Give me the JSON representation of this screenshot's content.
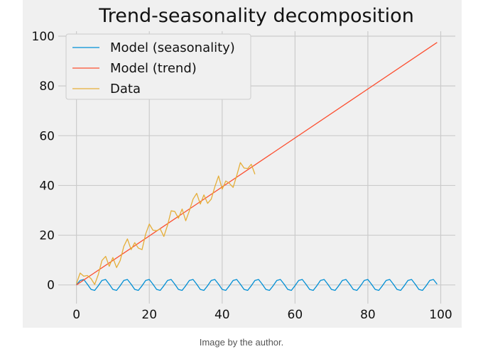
{
  "chart_data": {
    "type": "line",
    "title": "Trend-seasonality decomposition",
    "xlabel": "",
    "ylabel": "",
    "xlim": [
      -5,
      104
    ],
    "ylim": [
      -7.5,
      102
    ],
    "xticks": [
      0,
      20,
      40,
      60,
      80,
      100
    ],
    "yticks": [
      0,
      20,
      40,
      60,
      80,
      100
    ],
    "grid": true,
    "legend_position": "top-left",
    "series": [
      {
        "name": "Model (seasonality)",
        "color": "#008fd5",
        "x": [
          0,
          1,
          2,
          3,
          4,
          5,
          6,
          7,
          8,
          9,
          10,
          11,
          12,
          13,
          14,
          15,
          16,
          17,
          18,
          19,
          20,
          21,
          22,
          23,
          24,
          25,
          26,
          27,
          28,
          29,
          30,
          31,
          32,
          33,
          34,
          35,
          36,
          37,
          38,
          39,
          40,
          41,
          42,
          43,
          44,
          45,
          46,
          47,
          48,
          49,
          50,
          51,
          52,
          53,
          54,
          55,
          56,
          57,
          58,
          59,
          60,
          61,
          62,
          63,
          64,
          65,
          66,
          67,
          68,
          69,
          70,
          71,
          72,
          73,
          74,
          75,
          76,
          77,
          78,
          79,
          80,
          81,
          82,
          83,
          84,
          85,
          86,
          87,
          88,
          89,
          90,
          91,
          92,
          93,
          94,
          95,
          96,
          97,
          98,
          99
        ],
        "y": [
          0,
          1.8,
          2.2,
          0.3,
          -1.8,
          -2.2,
          -0.3,
          1.8,
          2.2,
          0.3,
          -1.8,
          -2.2,
          -0.3,
          1.8,
          2.2,
          0.3,
          -1.8,
          -2.2,
          -0.3,
          1.8,
          2.2,
          0.3,
          -1.8,
          -2.2,
          -0.3,
          1.8,
          2.2,
          0.3,
          -1.8,
          -2.2,
          -0.3,
          1.8,
          2.2,
          0.3,
          -1.8,
          -2.2,
          -0.3,
          1.8,
          2.2,
          0.3,
          -1.8,
          -2.2,
          -0.3,
          1.8,
          2.2,
          0.3,
          -1.8,
          -2.2,
          -0.3,
          1.8,
          2.2,
          0.3,
          -1.8,
          -2.2,
          -0.3,
          1.8,
          2.2,
          0.3,
          -1.8,
          -2.2,
          -0.3,
          1.8,
          2.2,
          0.3,
          -1.8,
          -2.2,
          -0.3,
          1.8,
          2.2,
          0.3,
          -1.8,
          -2.2,
          -0.3,
          1.8,
          2.2,
          0.3,
          -1.8,
          -2.2,
          -0.3,
          1.8,
          2.2,
          0.3,
          -1.8,
          -2.2,
          -0.3,
          1.8,
          2.2,
          0.3,
          -1.8,
          -2.2,
          -0.3,
          1.8,
          2.2,
          0.3,
          -1.8,
          -2.2,
          -0.3,
          1.8,
          2.2,
          0.3
        ]
      },
      {
        "name": "Model (trend)",
        "color": "#fc4f30",
        "x": [
          0,
          99
        ],
        "y": [
          0,
          97.5
        ]
      },
      {
        "name": "Data",
        "color": "#e5ae38",
        "x": [
          0,
          1,
          2,
          3,
          4,
          5,
          6,
          7,
          8,
          9,
          10,
          11,
          12,
          13,
          14,
          15,
          16,
          17,
          18,
          19,
          20,
          21,
          22,
          23,
          24,
          25,
          26,
          27,
          28,
          29,
          30,
          31,
          32,
          33,
          34,
          35,
          36,
          37,
          38,
          39,
          40,
          41,
          42,
          43,
          44,
          45,
          46,
          47,
          48,
          49
        ],
        "y": [
          0.5,
          4.8,
          3.5,
          3.8,
          2.5,
          0.2,
          4.2,
          9.8,
          11.5,
          7.5,
          11.0,
          7.0,
          9.8,
          15.5,
          18.5,
          14.2,
          17.0,
          14.8,
          14.2,
          20.5,
          24.5,
          22.0,
          21.8,
          22.5,
          19.5,
          24.0,
          29.8,
          29.5,
          26.8,
          30.5,
          25.8,
          29.8,
          34.5,
          36.8,
          32.5,
          36.2,
          32.8,
          34.5,
          39.5,
          43.8,
          38.5,
          41.8,
          40.8,
          39.2,
          44.0,
          49.2,
          47.0,
          46.8,
          48.5,
          44.5
        ]
      }
    ]
  },
  "caption": "Image by the author."
}
